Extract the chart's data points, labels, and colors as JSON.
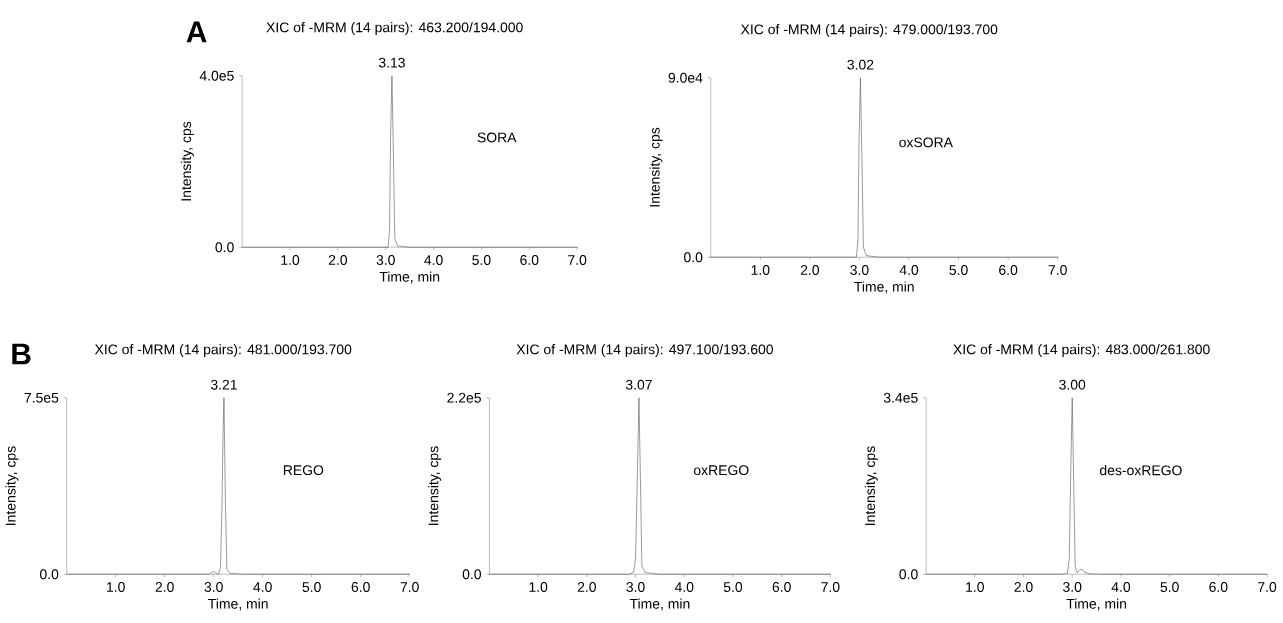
{
  "chart_data": [
    {
      "type": "line",
      "title": "XIC of -MRM (14 pairs): 463.200/194.000",
      "xlabel": "Time, min",
      "ylabel": "Intensity, cps",
      "xlim": [
        0,
        7
      ],
      "ylim": [
        0,
        400000
      ],
      "xticks": [
        {
          "value": 1,
          "label": "1.0"
        },
        {
          "value": 2,
          "label": "2.0"
        },
        {
          "value": 3,
          "label": "3.0"
        },
        {
          "value": 4,
          "label": "4.0"
        },
        {
          "value": 5,
          "label": "5.0"
        },
        {
          "value": 6,
          "label": "6.0"
        },
        {
          "value": 7,
          "label": "7.0"
        }
      ],
      "yticks": [
        {
          "value": 0,
          "label": "0.0"
        },
        {
          "value": 400000,
          "label": "4.0e5"
        }
      ],
      "annotations": [
        "A",
        {
          "text": "3.13",
          "x": 3.13,
          "y": 400000
        },
        "SORA"
      ],
      "series": [
        {
          "color": "#555555",
          "x": [
            0,
            2.9,
            3.05,
            3.08,
            3.1,
            3.13,
            3.16,
            3.19,
            3.25,
            3.5,
            7
          ],
          "values": [
            0,
            0,
            0,
            40000,
            250000,
            400000,
            220000,
            20000,
            3000,
            0,
            0
          ]
        }
      ]
    },
    {
      "type": "line",
      "title": "XIC of -MRM (14 pairs): 479.000/193.700",
      "xlabel": "Time, min",
      "ylabel": "Intensity, cps",
      "xlim": [
        0,
        7
      ],
      "ylim": [
        0,
        90000
      ],
      "xticks": [
        {
          "value": 1,
          "label": "1.0"
        },
        {
          "value": 2,
          "label": "2.0"
        },
        {
          "value": 3,
          "label": "3.0"
        },
        {
          "value": 4,
          "label": "4.0"
        },
        {
          "value": 5,
          "label": "5.0"
        },
        {
          "value": 6,
          "label": "6.0"
        },
        {
          "value": 7,
          "label": "7.0"
        }
      ],
      "yticks": [
        {
          "value": 0,
          "label": "0.0"
        },
        {
          "value": 90000,
          "label": "9.0e4"
        }
      ],
      "annotations": [
        {
          "text": "3.02",
          "x": 3.02,
          "y": 90000
        },
        "oxSORA"
      ],
      "series": [
        {
          "color": "#555555",
          "x": [
            0,
            2.85,
            2.94,
            2.97,
            2.99,
            3.02,
            3.05,
            3.08,
            3.14,
            3.4,
            7
          ],
          "values": [
            0,
            0,
            0,
            9000,
            55000,
            90000,
            50000,
            5000,
            800,
            0,
            0
          ]
        }
      ]
    },
    {
      "type": "line",
      "title": "XIC of -MRM (14 pairs): 481.000/193.700",
      "xlabel": "Time, min",
      "ylabel": "Intensity, cps",
      "xlim": [
        0,
        7
      ],
      "ylim": [
        0,
        750000
      ],
      "xticks": [
        {
          "value": 1,
          "label": "1.0"
        },
        {
          "value": 2,
          "label": "2.0"
        },
        {
          "value": 3,
          "label": "3.0"
        },
        {
          "value": 4,
          "label": "4.0"
        },
        {
          "value": 5,
          "label": "5.0"
        },
        {
          "value": 6,
          "label": "6.0"
        },
        {
          "value": 7,
          "label": "7.0"
        }
      ],
      "yticks": [
        {
          "value": 0,
          "label": "0.0"
        },
        {
          "value": 750000,
          "label": "7.5e5"
        }
      ],
      "annotations": [
        "B",
        {
          "text": "3.21",
          "x": 3.21,
          "y": 750000
        },
        "REGO"
      ],
      "series": [
        {
          "color": "#555555",
          "x": [
            0,
            2.9,
            2.97,
            3.0,
            3.04,
            3.1,
            3.14,
            3.17,
            3.19,
            3.21,
            3.24,
            3.27,
            3.33,
            3.6,
            7
          ],
          "values": [
            0,
            0,
            8000,
            12000,
            6000,
            0,
            30000,
            300000,
            580000,
            750000,
            300000,
            20000,
            4000,
            0,
            0
          ]
        }
      ]
    },
    {
      "type": "line",
      "title": "XIC of -MRM (14 pairs): 497.100/193.600",
      "xlabel": "Time, min",
      "ylabel": "Intensity, cps",
      "xlim": [
        0,
        7
      ],
      "ylim": [
        0,
        220000
      ],
      "xticks": [
        {
          "value": 1,
          "label": "1.0"
        },
        {
          "value": 2,
          "label": "2.0"
        },
        {
          "value": 3,
          "label": "3.0"
        },
        {
          "value": 4,
          "label": "4.0"
        },
        {
          "value": 5,
          "label": "5.0"
        },
        {
          "value": 6,
          "label": "6.0"
        },
        {
          "value": 7,
          "label": "7.0"
        }
      ],
      "yticks": [
        {
          "value": 0,
          "label": "0.0"
        },
        {
          "value": 220000,
          "label": "2.2e5"
        }
      ],
      "annotations": [
        {
          "text": "3.07",
          "x": 3.07,
          "y": 220000
        },
        "oxREGO"
      ],
      "series": [
        {
          "color": "#555555",
          "x": [
            0,
            2.85,
            2.96,
            3.0,
            3.04,
            3.07,
            3.1,
            3.13,
            3.2,
            3.5,
            7
          ],
          "values": [
            0,
            0,
            2000,
            20000,
            130000,
            220000,
            120000,
            10000,
            2000,
            0,
            0
          ]
        }
      ]
    },
    {
      "type": "line",
      "title": "XIC of -MRM (14 pairs): 483.000/261.800",
      "xlabel": "Time, min",
      "ylabel": "Intensity, cps",
      "xlim": [
        0,
        7
      ],
      "ylim": [
        0,
        340000
      ],
      "xticks": [
        {
          "value": 1,
          "label": "1.0"
        },
        {
          "value": 2,
          "label": "2.0"
        },
        {
          "value": 3,
          "label": "3.0"
        },
        {
          "value": 4,
          "label": "4.0"
        },
        {
          "value": 5,
          "label": "5.0"
        },
        {
          "value": 6,
          "label": "6.0"
        },
        {
          "value": 7,
          "label": "7.0"
        }
      ],
      "yticks": [
        {
          "value": 0,
          "label": "0.0"
        },
        {
          "value": 340000,
          "label": "3.4e5"
        }
      ],
      "annotations": [
        {
          "text": "3.00",
          "x": 3.0,
          "y": 340000
        },
        "des-oxREGO"
      ],
      "series": [
        {
          "color": "#555555",
          "x": [
            0,
            2.8,
            2.9,
            2.94,
            2.97,
            3.0,
            3.03,
            3.06,
            3.1,
            3.15,
            3.2,
            3.25,
            3.35,
            3.6,
            7
          ],
          "values": [
            0,
            0,
            2000,
            30000,
            200000,
            340000,
            180000,
            15000,
            3000,
            8000,
            10000,
            4000,
            1000,
            0,
            0
          ]
        }
      ]
    }
  ]
}
